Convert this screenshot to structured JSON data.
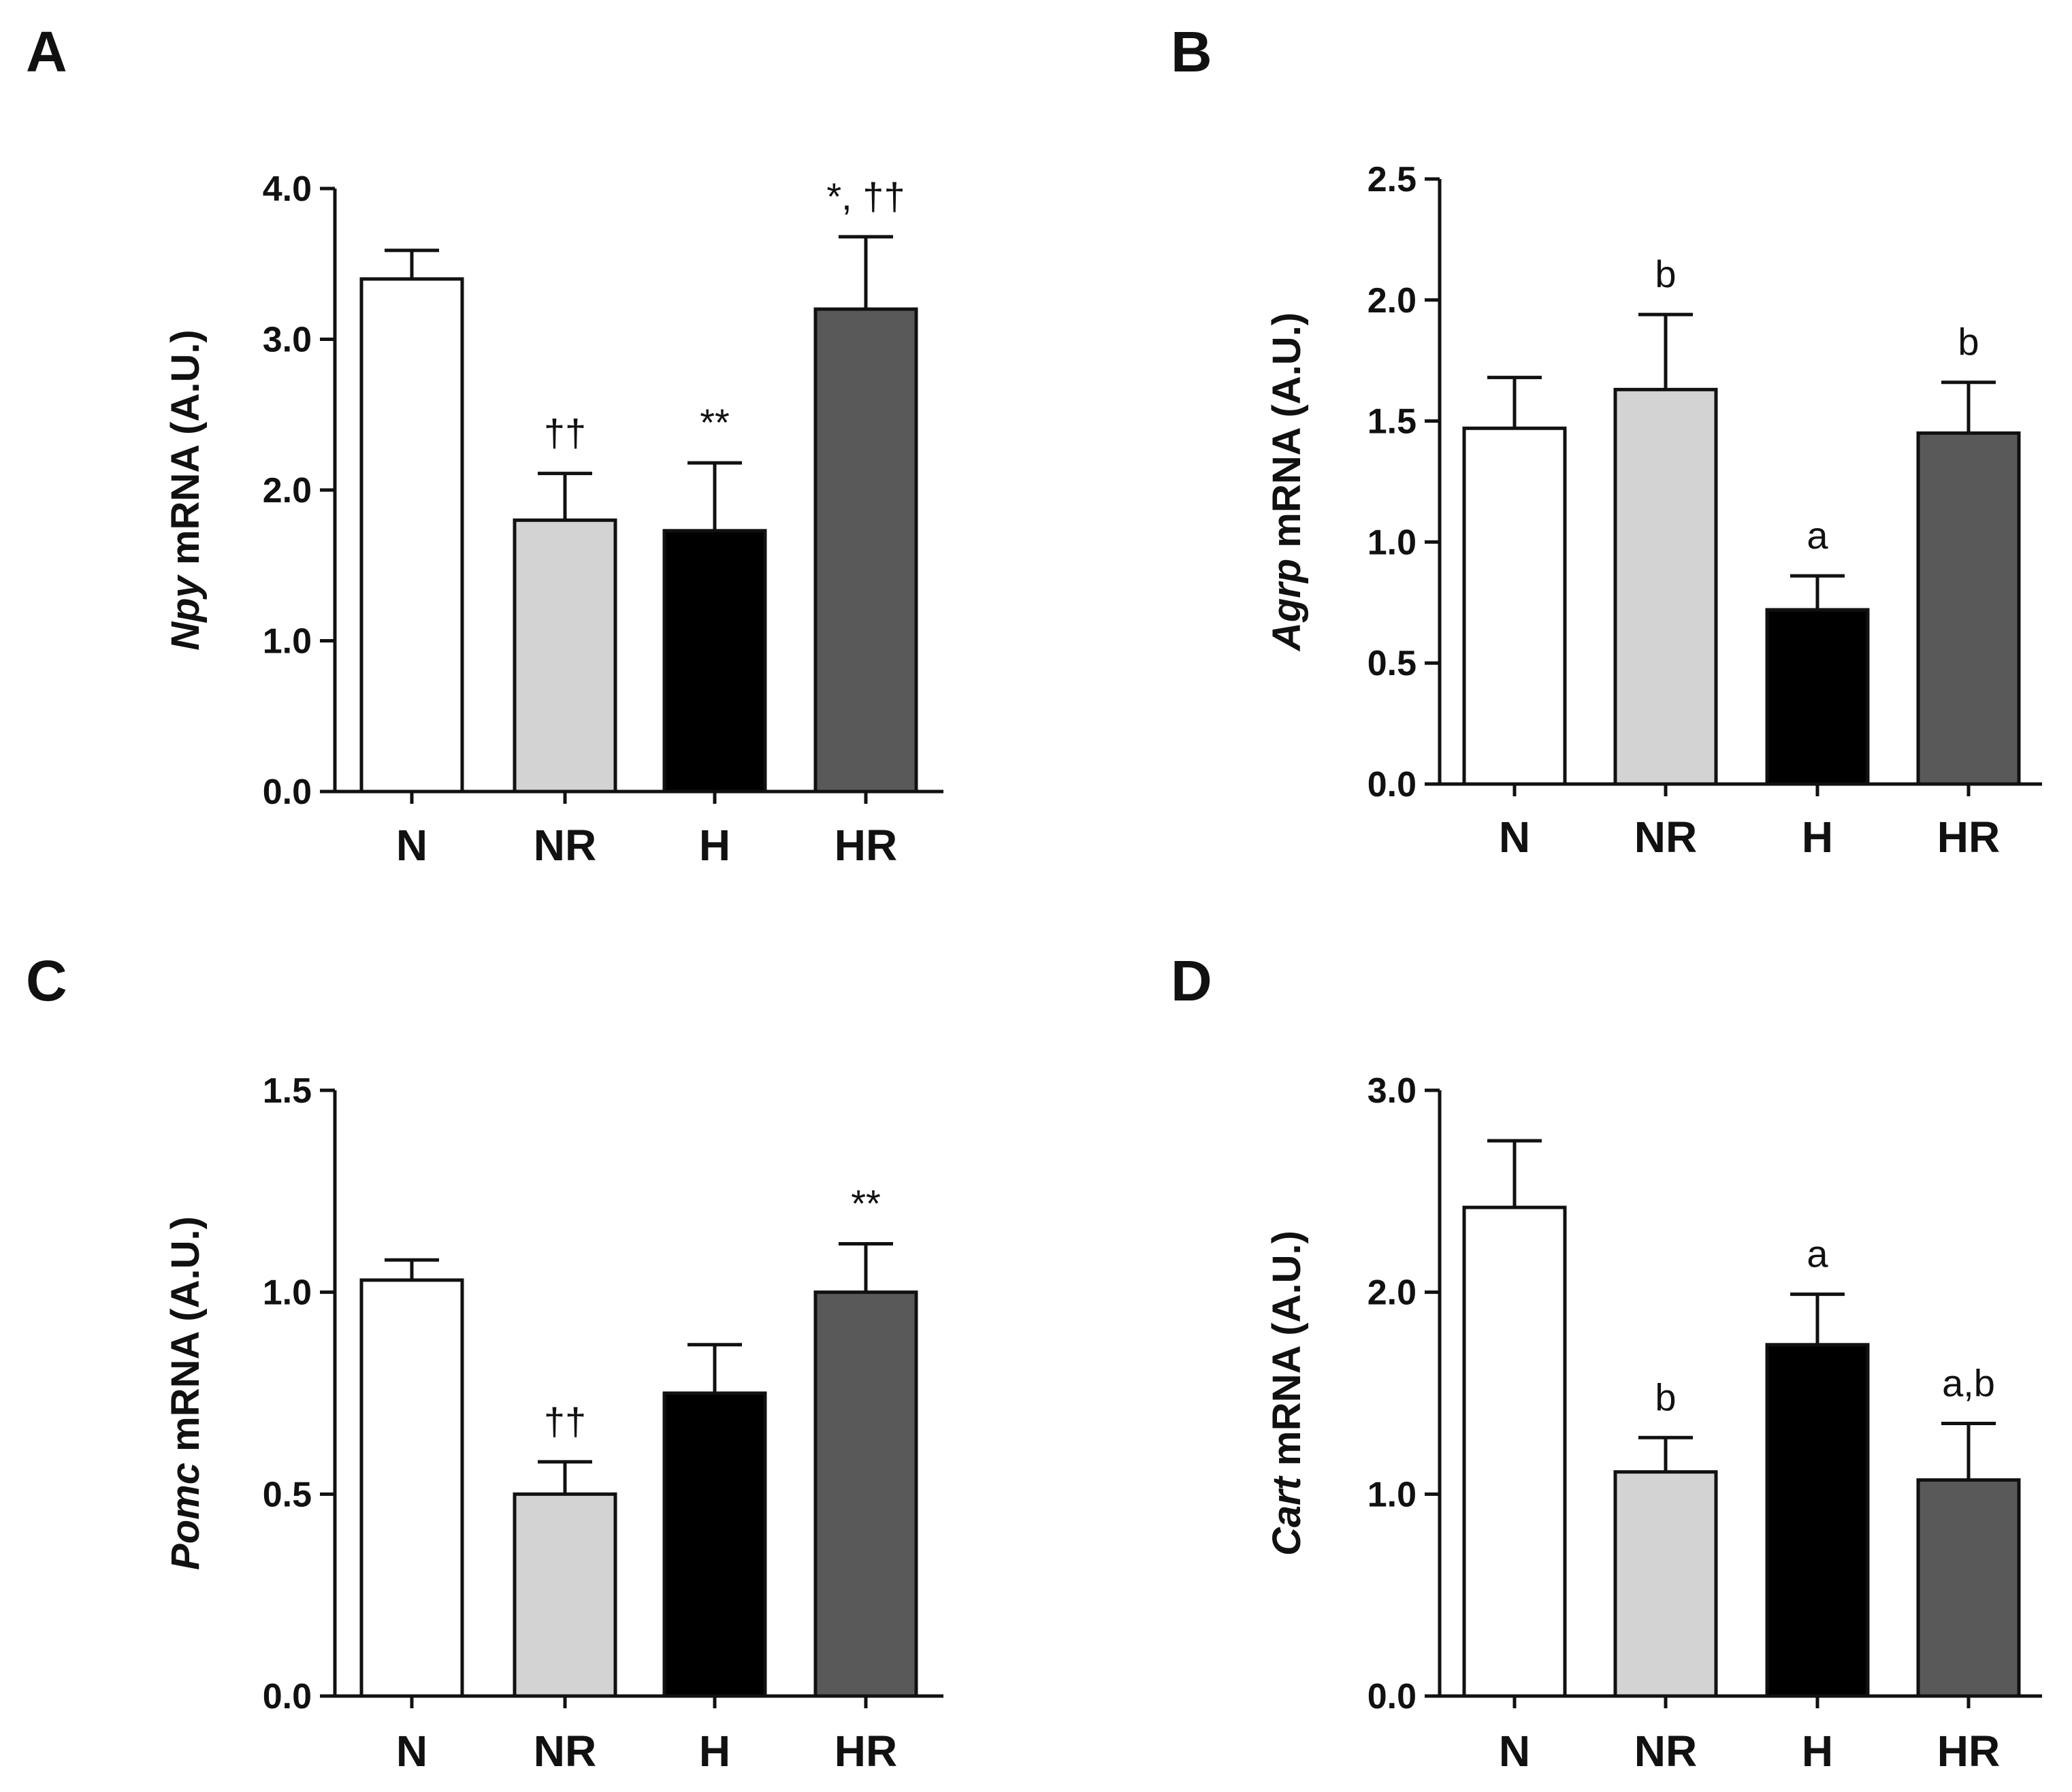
{
  "chart_data": [
    {
      "type": "bar",
      "panel": "A",
      "gene": "Npy",
      "ylabel_suffix": " mRNA (A.U.)",
      "categories": [
        "N",
        "NR",
        "H",
        "HR"
      ],
      "values": [
        3.4,
        1.8,
        1.73,
        3.2
      ],
      "errors": [
        0.19,
        0.31,
        0.45,
        0.48
      ],
      "annotations": [
        "",
        "††",
        "**",
        "*, ††"
      ],
      "ylim": [
        0,
        4.0
      ],
      "ticks": [
        0.0,
        1.0,
        2.0,
        3.0,
        4.0
      ],
      "tick_labels": [
        "0.0",
        "1.0",
        "2.0",
        "3.0",
        "4.0"
      ]
    },
    {
      "type": "bar",
      "panel": "B",
      "gene": "Agrp",
      "ylabel_suffix": " mRNA (A.U.)",
      "categories": [
        "N",
        "NR",
        "H",
        "HR"
      ],
      "values": [
        1.47,
        1.63,
        0.72,
        1.45
      ],
      "errors": [
        0.21,
        0.31,
        0.14,
        0.21
      ],
      "annotations": [
        "",
        "b",
        "a",
        "b"
      ],
      "ylim": [
        0,
        2.5
      ],
      "ticks": [
        0.0,
        0.5,
        1.0,
        1.5,
        2.0,
        2.5
      ],
      "tick_labels": [
        "0.0",
        "0.5",
        "1.0",
        "1.5",
        "2.0",
        "2.5"
      ]
    },
    {
      "type": "bar",
      "panel": "C",
      "gene": "Pomc",
      "ylabel_suffix": " mRNA (A.U.)",
      "categories": [
        "N",
        "NR",
        "H",
        "HR"
      ],
      "values": [
        1.03,
        0.5,
        0.75,
        1.0
      ],
      "errors": [
        0.05,
        0.08,
        0.12,
        0.12
      ],
      "annotations": [
        "",
        "††",
        "",
        "**"
      ],
      "ylim": [
        0,
        1.5
      ],
      "ticks": [
        0.0,
        0.5,
        1.0,
        1.5
      ],
      "tick_labels": [
        "0.0",
        "0.5",
        "1.0",
        "1.5"
      ]
    },
    {
      "type": "bar",
      "panel": "D",
      "gene": "Cart",
      "ylabel_suffix": " mRNA (A.U.)",
      "categories": [
        "N",
        "NR",
        "H",
        "HR"
      ],
      "values": [
        2.42,
        1.11,
        1.74,
        1.07
      ],
      "errors": [
        0.33,
        0.17,
        0.25,
        0.28
      ],
      "annotations": [
        "",
        "b",
        "a",
        "a,b"
      ],
      "ylim": [
        0,
        3.0
      ],
      "ticks": [
        0.0,
        1.0,
        2.0,
        3.0
      ],
      "tick_labels": [
        "0.0",
        "1.0",
        "2.0",
        "3.0"
      ]
    }
  ],
  "colors": {
    "N": "#ffffff",
    "NR": "#d3d3d3",
    "H": "#000000",
    "HR": "#595959"
  }
}
